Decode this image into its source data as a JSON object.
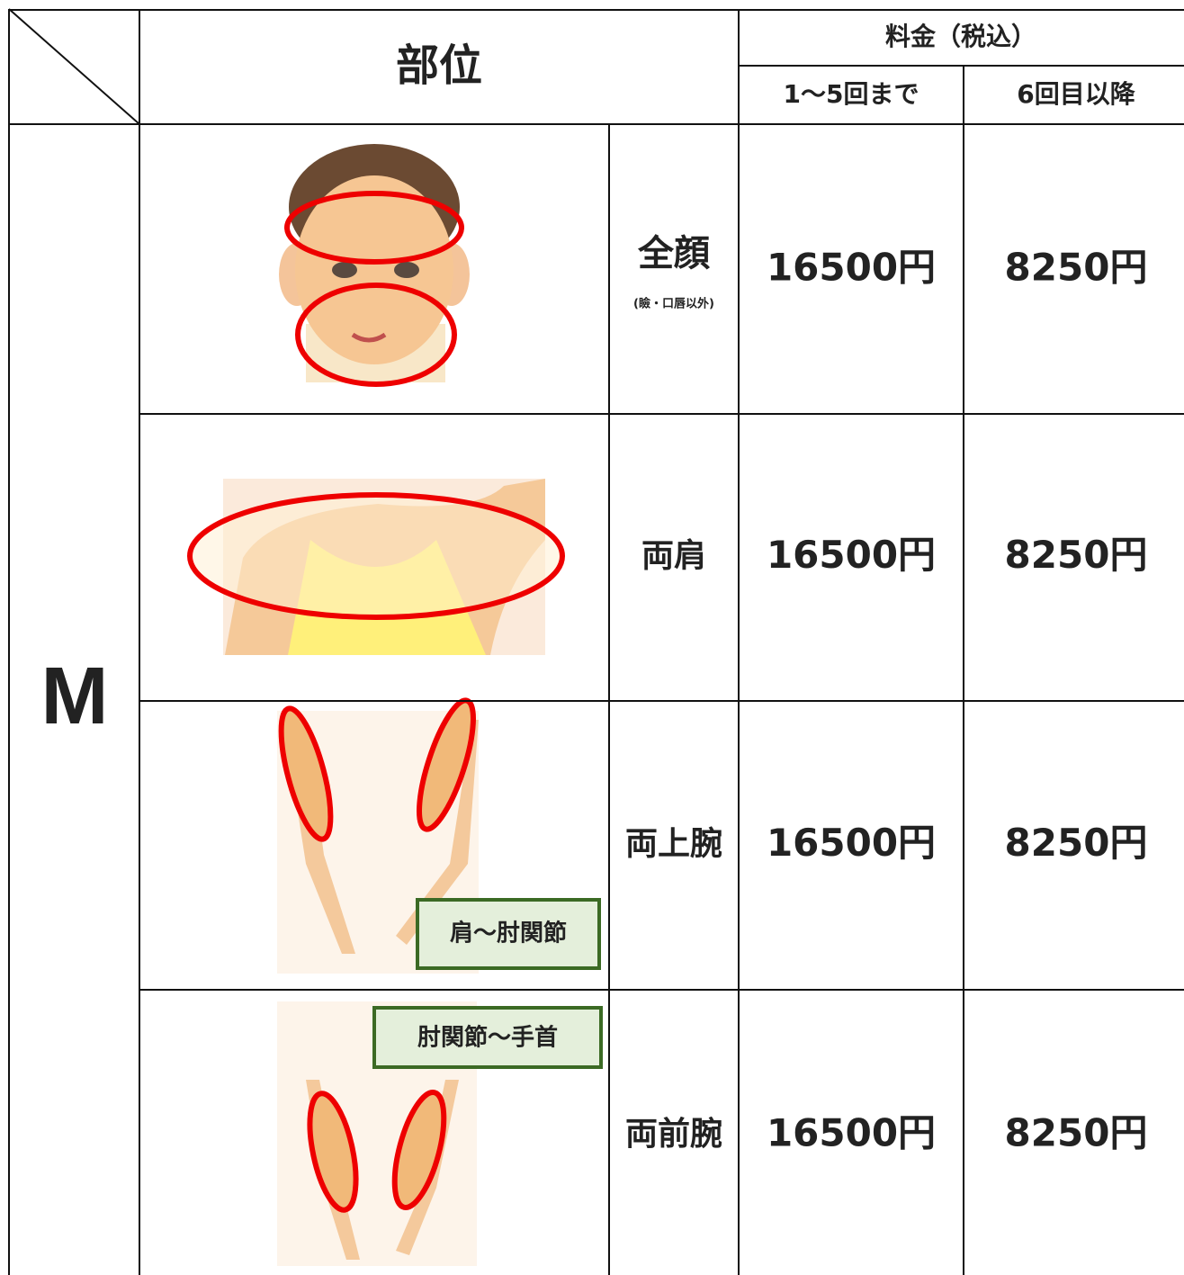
{
  "header": {
    "part": "部位",
    "price": "料金（税込）",
    "first": "1〜5回まで",
    "after": "6回目以降"
  },
  "group": "M",
  "rows": [
    {
      "name": "全顔",
      "note": "(瞼・口唇以外)",
      "first": "16500円",
      "after": "8250円"
    },
    {
      "name": "両肩",
      "first": "16500円",
      "after": "8250円"
    },
    {
      "name": "両上腕",
      "tag": "肩〜肘関節",
      "first": "16500円",
      "after": "8250円"
    },
    {
      "name": "両前腕",
      "tag": "肘関節〜手首",
      "first": "16500円",
      "after": "8250円"
    }
  ]
}
